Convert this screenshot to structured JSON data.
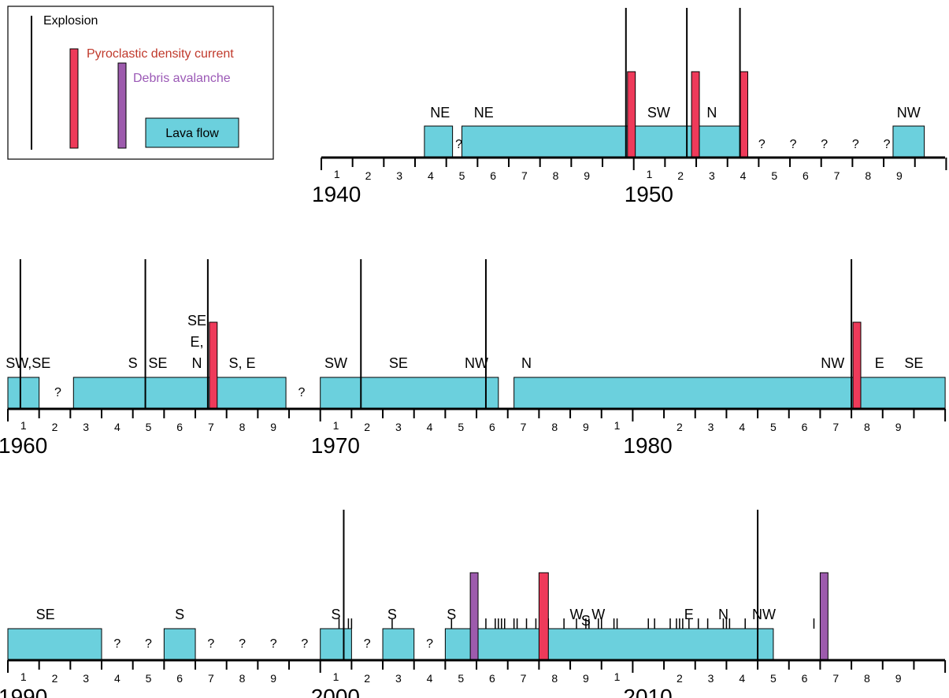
{
  "colors": {
    "lava": "#6bd0dd",
    "pdc": "#ee3a5a",
    "debris": "#9d5bad",
    "explosion": "#000000",
    "pdc_text": "#c0392b",
    "debris_text": "#9b59b6"
  },
  "legend": {
    "explosion": "Explosion",
    "pdc": "Pyroclastic density current",
    "debris": "Debris avalanche",
    "lava": "Lava flow"
  },
  "chart_data": {
    "type": "timeline",
    "rows": [
      {
        "decade_labels": [
          "1940",
          "1950"
        ],
        "year_digits": [
          "1",
          "2",
          "3",
          "4",
          "5",
          "6",
          "7",
          "8",
          "9",
          "1",
          "2",
          "3",
          "4",
          "5",
          "6",
          "7",
          "8",
          "9"
        ],
        "lava_flows": [
          [
            1943.3,
            1944.2
          ],
          [
            1944.5,
            1953.5
          ],
          [
            1958.3,
            1959.3
          ]
        ],
        "explosions": [
          1949.75,
          1951.7,
          1953.4
        ],
        "pdc": [
          [
            1949.8,
            1950.05
          ],
          [
            1951.85,
            1952.1
          ],
          [
            1953.4,
            1953.65
          ]
        ],
        "debris": [],
        "minor_ticks": [],
        "labels": [
          {
            "t": "NE",
            "x": 1943.8
          },
          {
            "t": "NE",
            "x": 1945.2
          },
          {
            "t": "SW",
            "x": 1950.8
          },
          {
            "t": "N",
            "x": 1952.5
          },
          {
            "t": "NW",
            "x": 1958.8
          }
        ],
        "questions": [
          1944.4,
          1954.1,
          1955.1,
          1956.1,
          1957.1,
          1958.1
        ]
      },
      {
        "decade_labels": [
          "1960",
          "1970",
          "1980"
        ],
        "year_digits": [
          "1",
          "2",
          "3",
          "4",
          "5",
          "6",
          "7",
          "8",
          "9",
          "1",
          "2",
          "3",
          "4",
          "5",
          "6",
          "7",
          "8",
          "9",
          "1",
          "2",
          "3",
          "4",
          "5",
          "6",
          "7",
          "8",
          "9"
        ],
        "lava_flows": [
          [
            1960.0,
            1961.0
          ],
          [
            1962.1,
            1968.9
          ],
          [
            1970.0,
            1975.7
          ],
          [
            1976.2,
            1990.0
          ]
        ],
        "explosions": [
          1960.4,
          1964.4,
          1966.4,
          1971.3,
          1975.3,
          1987.0
        ],
        "pdc": [
          [
            1966.45,
            1966.7
          ],
          [
            1987.05,
            1987.3
          ]
        ],
        "debris": [],
        "minor_ticks": [],
        "labels": [
          {
            "t": "SW,SE",
            "x": 1960.65
          },
          {
            "t": "S",
            "x": 1964.0
          },
          {
            "t": "SE",
            "x": 1964.8
          },
          {
            "t": "SE",
            "x": 1966.05,
            "line": 0
          },
          {
            "t": "E,",
            "x": 1966.05,
            "line": 1
          },
          {
            "t": "N",
            "x": 1966.05,
            "line": 2
          },
          {
            "t": "S, E",
            "x": 1967.5
          },
          {
            "t": "SW",
            "x": 1970.5
          },
          {
            "t": "SE",
            "x": 1972.5
          },
          {
            "t": "NW",
            "x": 1975.0
          },
          {
            "t": "N",
            "x": 1976.6
          },
          {
            "t": "NW",
            "x": 1986.4
          },
          {
            "t": "E",
            "x": 1987.9
          },
          {
            "t": "SE",
            "x": 1989.0
          }
        ],
        "questions": [
          1961.6,
          1969.4
        ]
      },
      {
        "decade_labels": [
          "1990",
          "2000",
          "2010"
        ],
        "year_digits": [
          "1",
          "2",
          "3",
          "4",
          "5",
          "6",
          "7",
          "8",
          "9",
          "1",
          "2",
          "3",
          "4",
          "5",
          "6",
          "7",
          "8",
          "9",
          "1",
          "2",
          "3",
          "4",
          "5",
          "6",
          "7",
          "8",
          "9"
        ],
        "lava_flows": [
          [
            1990.0,
            1993.0
          ],
          [
            1995.0,
            1996.0
          ],
          [
            2000.0,
            2001.0
          ],
          [
            2002.0,
            2003.0
          ],
          [
            2004.0,
            2014.5
          ]
        ],
        "explosions": [
          2000.75,
          2014.0
        ],
        "pdc": [
          [
            2007.0,
            2007.3
          ]
        ],
        "debris": [
          [
            2004.8,
            2005.05
          ],
          [
            2016.0,
            2016.25
          ]
        ],
        "minor_ticks": [
          2000.6,
          2000.9,
          2001.0,
          2002.3,
          2004.2,
          2005.3,
          2005.6,
          2005.7,
          2005.8,
          2005.9,
          2006.2,
          2006.3,
          2006.6,
          2006.9,
          2007.1,
          2007.2,
          2007.3,
          2007.8,
          2008.2,
          2008.5,
          2008.6,
          2008.9,
          2009.0,
          2009.4,
          2009.5,
          2010.5,
          2010.7,
          2011.2,
          2011.4,
          2011.5,
          2011.6,
          2011.8,
          2012.1,
          2012.4,
          2012.9,
          2013.0,
          2013.1,
          2013.6,
          2015.8
        ],
        "labels": [
          {
            "t": "SE",
            "x": 1991.2
          },
          {
            "t": "S",
            "x": 1995.5
          },
          {
            "t": "S",
            "x": 2000.5
          },
          {
            "t": "S",
            "x": 2002.3
          },
          {
            "t": "S",
            "x": 2004.2
          },
          {
            "t": "W",
            "x": 2008.2
          },
          {
            "t": "S",
            "x": 2008.5,
            "drop": 1
          },
          {
            "t": "W",
            "x": 2008.9
          },
          {
            "t": "E",
            "x": 2011.8
          },
          {
            "t": "N",
            "x": 2012.9
          },
          {
            "t": "NW",
            "x": 2014.2
          }
        ],
        "questions": [
          1993.5,
          1994.5,
          1996.5,
          1997.5,
          1998.5,
          1999.5,
          2001.5,
          2003.5
        ]
      }
    ]
  }
}
